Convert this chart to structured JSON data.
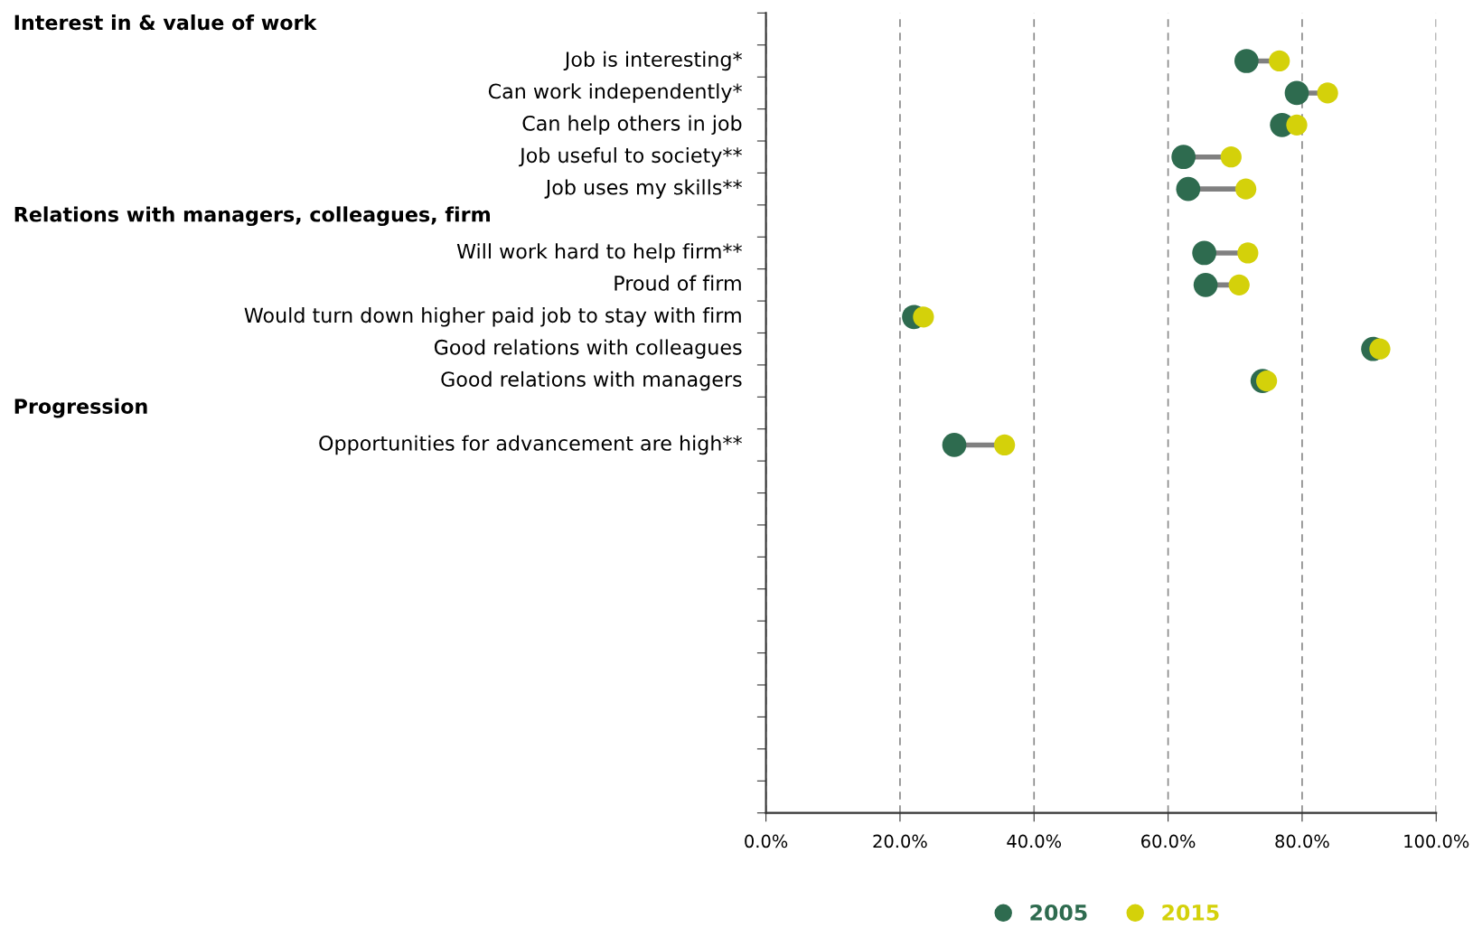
{
  "chart_data": {
    "type": "scatter",
    "orientation": "horizontal",
    "annotations": [
      "Interest in & value of work",
      "Relations with managers, colleagues, firm",
      "Progression"
    ],
    "categories": [
      null,
      "Job is interesting*",
      "Can work independently*",
      "Can help others in job",
      "Job useful to society**",
      "Job uses my skills**",
      null,
      "Will work hard to help firm**",
      "Proud of firm",
      "Would turn down higher paid job to stay with firm",
      "Good relations with colleagues",
      "Good relations with managers",
      null,
      "Opportunities for advancement are high**",
      null,
      null,
      null,
      null,
      null,
      null,
      null,
      null,
      null,
      null,
      null
    ],
    "series": [
      {
        "name": "2005",
        "color": "#2e6b4f",
        "values": [
          null,
          71.7,
          79.2,
          77.0,
          62.3,
          63.0,
          null,
          65.4,
          65.6,
          22.1,
          90.6,
          74.1,
          null,
          28.1,
          null,
          null,
          null,
          null,
          null,
          null,
          null,
          null,
          null,
          null,
          null
        ]
      },
      {
        "name": "2015",
        "color": "#d4d10a",
        "values": [
          null,
          76.6,
          83.8,
          79.2,
          69.4,
          71.6,
          null,
          71.9,
          70.6,
          23.5,
          91.6,
          74.7,
          null,
          35.6,
          null,
          null,
          null,
          null,
          null,
          null,
          null,
          null,
          null,
          null,
          null
        ]
      }
    ],
    "xlim": [
      0,
      100
    ],
    "xticks": [
      {
        "value": 0,
        "label": "0.0%"
      },
      {
        "value": 20,
        "label": "20.0%"
      },
      {
        "value": 40,
        "label": "40.0%"
      },
      {
        "value": 60,
        "label": "60.0%"
      },
      {
        "value": 80,
        "label": "80.0%"
      },
      {
        "value": 100,
        "label": "100.0%"
      }
    ],
    "grid": "x",
    "legend": "bottom",
    "marker": "circle"
  }
}
